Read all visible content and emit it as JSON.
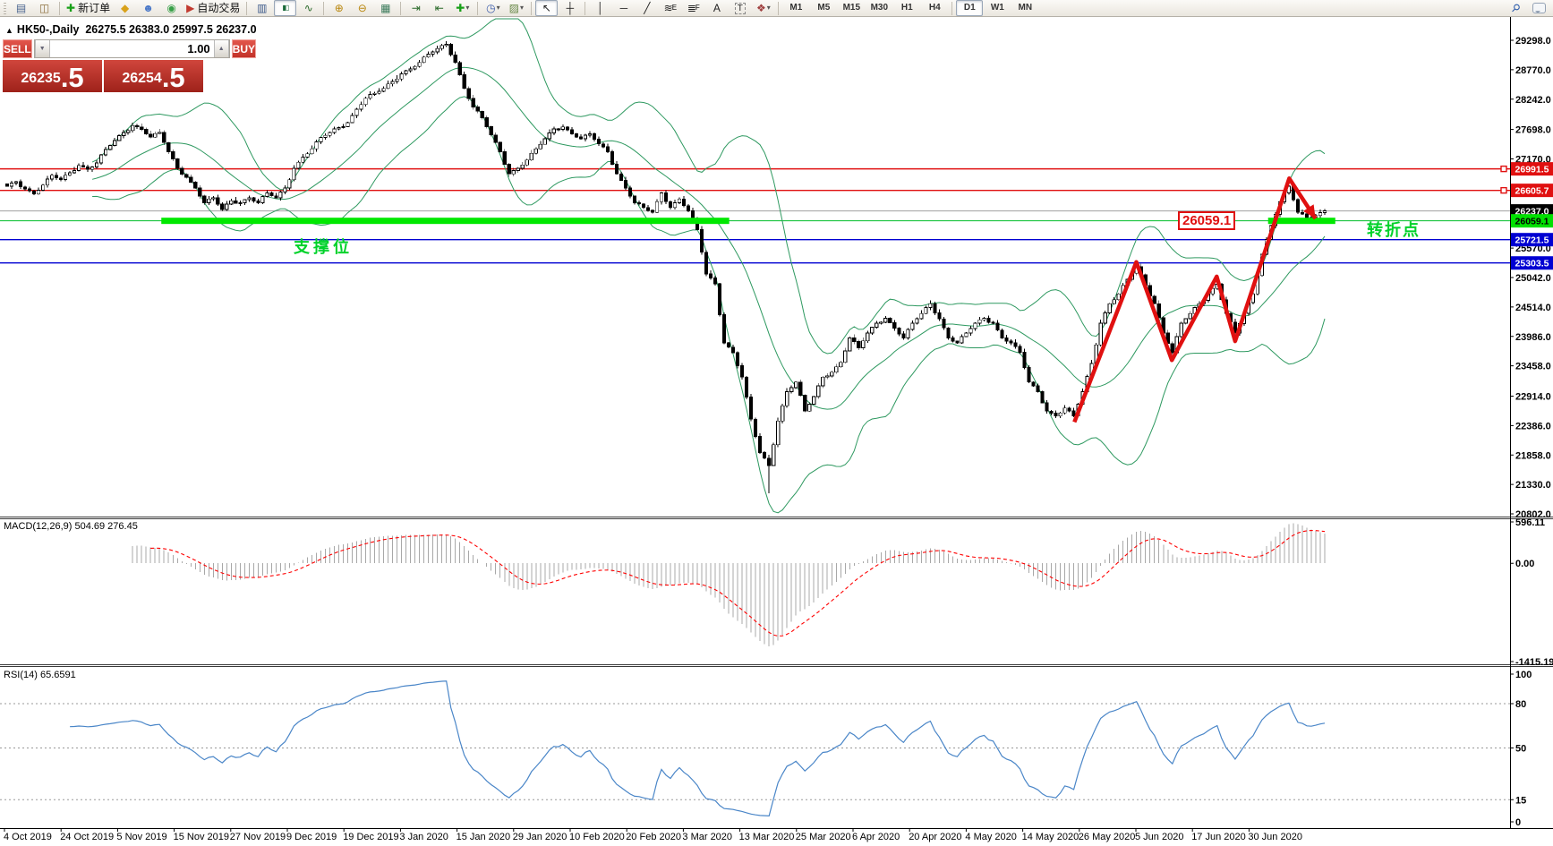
{
  "toolbar": {
    "items": [
      {
        "type": "handle"
      },
      {
        "type": "icon",
        "name": "market-watch-icon",
        "glyph": "▤",
        "color": "#49648f"
      },
      {
        "type": "icon",
        "name": "navigator-icon",
        "glyph": "◫",
        "color": "#8a6d3b"
      },
      {
        "type": "sep"
      },
      {
        "type": "labelbtn",
        "name": "new-order-button",
        "glyph": "✚",
        "color": "#18a018",
        "label": "新订单"
      },
      {
        "type": "icon",
        "name": "history-icon",
        "glyph": "◆",
        "color": "#d9a21b"
      },
      {
        "type": "icon",
        "name": "community-icon",
        "glyph": "☻",
        "color": "#4a78c8"
      },
      {
        "type": "icon",
        "name": "news-icon",
        "glyph": "◉",
        "color": "#38a048"
      },
      {
        "type": "labelbtn",
        "name": "auto-trading-button",
        "glyph": "▶",
        "color": "#c23a30",
        "label": "自动交易"
      },
      {
        "type": "sep"
      },
      {
        "type": "icon",
        "name": "bar-chart-icon",
        "glyph": "▥",
        "color": "#3d5a8a"
      },
      {
        "type": "icon",
        "name": "candlestick-chart-icon",
        "glyph": "▮▯",
        "color": "#1a6a3a",
        "active": true,
        "small": true
      },
      {
        "type": "icon",
        "name": "line-chart-icon",
        "glyph": "∿",
        "color": "#2a6a2a"
      },
      {
        "type": "sep"
      },
      {
        "type": "icon",
        "name": "zoom-in-icon",
        "glyph": "⊕",
        "color": "#b8860b"
      },
      {
        "type": "icon",
        "name": "zoom-out-icon",
        "glyph": "⊖",
        "color": "#b8860b"
      },
      {
        "type": "icon",
        "name": "tile-windows-icon",
        "glyph": "▦",
        "color": "#3a7a5a"
      },
      {
        "type": "sep"
      },
      {
        "type": "icon",
        "name": "auto-scroll-icon",
        "glyph": "⇥",
        "color": "#2a6a2a"
      },
      {
        "type": "icon",
        "name": "chart-shift-icon",
        "glyph": "⇤",
        "color": "#2a6a2a"
      },
      {
        "type": "icon",
        "name": "new-chart-icon",
        "glyph": "✚",
        "color": "#18a018",
        "dd": true
      },
      {
        "type": "sep"
      },
      {
        "type": "icon",
        "name": "periods-icon",
        "glyph": "◷",
        "color": "#3a5aaa",
        "dd": true
      },
      {
        "type": "icon",
        "name": "templates-icon",
        "glyph": "▨",
        "color": "#6a8a4a",
        "dd": true
      },
      {
        "type": "sep"
      },
      {
        "type": "icon",
        "name": "cursor-icon",
        "glyph": "↖",
        "color": "#222",
        "active": true
      },
      {
        "type": "icon",
        "name": "crosshair-icon",
        "glyph": "┼",
        "color": "#222"
      },
      {
        "type": "sep"
      },
      {
        "type": "icon",
        "name": "vertical-line-icon",
        "glyph": "│",
        "color": "#222"
      },
      {
        "type": "icon",
        "name": "horizontal-line-icon",
        "glyph": "─",
        "color": "#222"
      },
      {
        "type": "icon",
        "name": "trendline-icon",
        "glyph": "╱",
        "color": "#222"
      },
      {
        "type": "icon",
        "name": "equidistant-channel-icon",
        "glyph": "≋",
        "sub": "E",
        "color": "#222"
      },
      {
        "type": "icon",
        "name": "fibonacci-icon",
        "glyph": "≣",
        "sub": "F",
        "color": "#222"
      },
      {
        "type": "icon",
        "name": "text-icon",
        "glyph": "A",
        "color": "#222"
      },
      {
        "type": "icon",
        "name": "text-label-icon",
        "glyph": "T",
        "color": "#222",
        "boxed": true
      },
      {
        "type": "icon",
        "name": "arrows-icon",
        "glyph": "❖",
        "color": "#a04040",
        "dd": true
      },
      {
        "type": "sep"
      },
      {
        "type": "tf",
        "label": "M1"
      },
      {
        "type": "tf",
        "label": "M5"
      },
      {
        "type": "tf",
        "label": "M15"
      },
      {
        "type": "tf",
        "label": "M30"
      },
      {
        "type": "tf",
        "label": "H1"
      },
      {
        "type": "tf",
        "label": "H4"
      },
      {
        "type": "sep"
      },
      {
        "type": "tf",
        "label": "D1",
        "active": true
      },
      {
        "type": "tf",
        "label": "W1"
      },
      {
        "type": "tf",
        "label": "MN"
      },
      {
        "type": "gap"
      },
      {
        "type": "icon",
        "name": "search-icon",
        "glyph": "⚲",
        "color": "#2a5aaa",
        "rot": true
      },
      {
        "type": "bubble",
        "name": "chat-icon"
      }
    ]
  },
  "chart": {
    "symbol_line": {
      "collapse": "▲",
      "title": "HK50-,Daily",
      "ohlc": "26275.5 26383.0 25997.5 26237.0"
    },
    "one_click": {
      "sell_label": "SELL",
      "buy_label": "BUY",
      "volume": "1.00",
      "vol_down_glyph": "▼",
      "vol_up_glyph": "▲",
      "sell_price": {
        "main": "26235",
        "big": ".5"
      },
      "buy_price": {
        "main": "26254",
        "big": ".5"
      }
    }
  },
  "annotations": {
    "support": {
      "text": "支撑位"
    },
    "callout": {
      "text": "26059.1"
    },
    "pivot": {
      "text": "转折点"
    }
  },
  "chart_data": {
    "type": "candlestick+indicators",
    "symbol": "HK50-",
    "period": "Daily",
    "current_ohlc": {
      "open": 26275.5,
      "high": 26383.0,
      "low": 25997.5,
      "close": 26237.0
    },
    "bid": 26235.5,
    "ask": 26254.5,
    "price_axis_ticks": [
      "29298.0",
      "28770.0",
      "28242.0",
      "27698.0",
      "27170.0",
      "25570.0",
      "25042.0",
      "24514.0",
      "23986.0",
      "23458.0",
      "22914.0",
      "22386.0",
      "21858.0",
      "21330.0",
      "20802.0"
    ],
    "hlines": [
      {
        "price": 26991.5,
        "color": "#e01010",
        "w": 1.4,
        "handle": true,
        "label": "26991.5",
        "label_bg": "#e01010",
        "label_fg": "#ffffff"
      },
      {
        "price": 26605.7,
        "color": "#e01010",
        "w": 1.4,
        "handle": true,
        "label": "26605.7",
        "label_bg": "#e01010",
        "label_fg": "#ffffff"
      },
      {
        "price": 26237.0,
        "color": "#a0a0a0",
        "w": 1,
        "label": "26237.0",
        "label_bg": "#000000",
        "label_fg": "#ffffff"
      },
      {
        "price": 26059.1,
        "color": "#00be28",
        "w": 1,
        "label": "26059.1",
        "label_bg": "#00e000",
        "label_fg": "#000000"
      },
      {
        "price": 25721.5,
        "color": "#0000d2",
        "w": 1.4,
        "label": "25721.5",
        "label_bg": "#0000d2",
        "label_fg": "#ffffff"
      },
      {
        "price": 25303.5,
        "color": "#0000d2",
        "w": 1.4,
        "label": "25303.5",
        "label_bg": "#0000d2",
        "label_fg": "#ffffff"
      }
    ],
    "support_bar": {
      "price": 26059.1,
      "segments": [
        {
          "from": 0.117,
          "to": 0.548
        },
        {
          "from": 0.957,
          "to": 1.008
        }
      ]
    },
    "arrow": {
      "points": [
        {
          "f": 0.81,
          "p": 22450
        },
        {
          "f": 0.857,
          "p": 25320
        },
        {
          "f": 0.884,
          "p": 23560
        },
        {
          "f": 0.918,
          "p": 25060
        },
        {
          "f": 0.932,
          "p": 23900
        },
        {
          "f": 0.973,
          "p": 26820
        },
        {
          "f": 0.993,
          "p": 26100
        }
      ]
    },
    "closes": [
      26680,
      26760,
      26630,
      26540,
      26700,
      26876,
      26800,
      26920,
      27052,
      26980,
      27100,
      27340,
      27500,
      27644,
      27767,
      27700,
      27560,
      27644,
      27300,
      27000,
      26841,
      26647,
      26385,
      26472,
      26261,
      26420,
      26385,
      26472,
      26385,
      26560,
      26472,
      26647,
      27000,
      27200,
      27350,
      27556,
      27644,
      27732,
      27820,
      28060,
      28259,
      28347,
      28435,
      28560,
      28698,
      28786,
      28900,
      29049,
      29150,
      29225,
      28900,
      28435,
      28100,
      27908,
      27600,
      27300,
      26900,
      27000,
      27150,
      27350,
      27530,
      27710,
      27745,
      27622,
      27530,
      27620,
      27440,
      27300,
      26900,
      26650,
      26385,
      26300,
      26210,
      26560,
      26300,
      26450,
      26237,
      25900,
      25106,
      24930,
      23870,
      23695,
      23256,
      22500,
      21900,
      21670,
      22469,
      22996,
      23168,
      22645,
      22908,
      23256,
      23344,
      23519,
      23958,
      23782,
      24046,
      24221,
      24309,
      24133,
      23958,
      24221,
      24397,
      24572,
      24300,
      23958,
      23870,
      24046,
      24221,
      24309,
      24221,
      23958,
      23870,
      23700,
      23168,
      22996,
      22645,
      22557,
      22700,
      22557,
      22996,
      23500,
      24221,
      24572,
      24748,
      25011,
      25240,
      24900,
      24572,
      24046,
      23695,
      24221,
      24397,
      24572,
      24748,
      24923,
      24397,
      24046,
      24400,
      24748,
      25459,
      25973,
      26400,
      26680,
      26210,
      26120,
      26155,
      26237
    ],
    "bollinger": {
      "period": 20,
      "deviation": 2
    },
    "macd": {
      "name": "MACD(12,26,9)",
      "values": "504.69 276.45",
      "fast": 12,
      "slow": 26,
      "signal": 9,
      "ticks": [
        {
          "t": "596.11",
          "v": 596.11
        },
        {
          "t": "0.00",
          "v": 0
        },
        {
          "t": "-1415.19",
          "v": -1415.19
        }
      ]
    },
    "rsi": {
      "name": "RSI(14)",
      "value": "65.6591",
      "period": 14,
      "levels": [
        80,
        50,
        15
      ],
      "ticks": [
        {
          "t": "100",
          "v": 100
        },
        {
          "t": "80",
          "v": 80
        },
        {
          "t": "50",
          "v": 50
        },
        {
          "t": "15",
          "v": 15
        },
        {
          "t": "0",
          "v": 0
        }
      ]
    },
    "x_labels": [
      "4 Oct 2019",
      "24 Oct 2019",
      "5 Nov 2019",
      "15 Nov 2019",
      "27 Nov 2019",
      "9 Dec 2019",
      "19 Dec 2019",
      "3 Jan 2020",
      "15 Jan 2020",
      "29 Jan 2020",
      "10 Feb 2020",
      "20 Feb 2020",
      "3 Mar 2020",
      "13 Mar 2020",
      "25 Mar 2020",
      "6 Apr 2020",
      "20 Apr 2020",
      "4 May 2020",
      "14 May 2020",
      "26 May 2020",
      "5 Jun 2020",
      "17 Jun 2020",
      "30 Jun 2020"
    ]
  },
  "colors": {
    "bull": "#ffffff",
    "bear": "#000000",
    "candle_stroke": "#000000",
    "bb": "#2e9960",
    "macd_hist": "#a8a8a8",
    "macd_signal": "#ff0000",
    "rsi": "#4a86c8",
    "support": "#00e800",
    "annotation_green": "#00d22a",
    "arrow_red": "#e01010",
    "axis": "#000000",
    "divider": "#3a3a3a",
    "level_dash": "#999999"
  }
}
